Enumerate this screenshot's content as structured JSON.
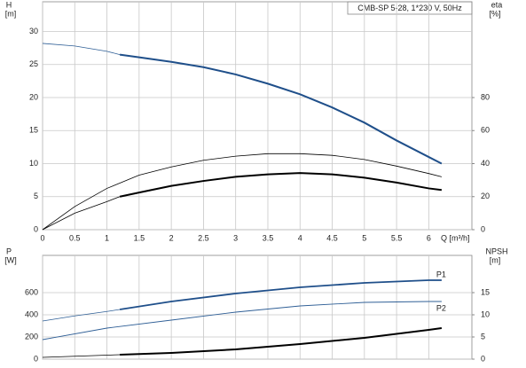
{
  "chart_data": [
    {
      "type": "line",
      "title": "CMB-SP 5-28, 1*230 V, 50Hz",
      "ylabel": "H",
      "yunit": "[m]",
      "y2label": "eta",
      "y2unit": "[%]",
      "xlabel": "Q [m³/h]",
      "xlim": [
        0,
        6.67
      ],
      "xticks": [
        0,
        0.5,
        1.0,
        1.5,
        2.0,
        2.5,
        3.0,
        3.5,
        4.0,
        4.5,
        5.0,
        5.5,
        6.0
      ],
      "ylim": [
        0,
        34.5
      ],
      "yticks": [
        0,
        5,
        10,
        15,
        20,
        25,
        30
      ],
      "y2lim": [
        0,
        138
      ],
      "y2ticks": [
        0,
        20,
        40,
        60,
        80
      ],
      "grid": true,
      "series": [
        {
          "color": "#2f5f96",
          "width": 0.8,
          "x": [
            0,
            0.5,
            1.0,
            1.2
          ],
          "values": [
            28.2,
            27.8,
            27.0,
            26.5
          ]
        },
        {
          "color": "#1f4f8a",
          "width": 2,
          "x": [
            1.2,
            1.5,
            2.0,
            2.5,
            3.0,
            3.5,
            4.0,
            4.5,
            5.0,
            5.5,
            6.0,
            6.2
          ],
          "values": [
            26.5,
            26.1,
            25.4,
            24.6,
            23.5,
            22.1,
            20.5,
            18.5,
            16.2,
            13.5,
            11.0,
            10.0
          ]
        },
        {
          "color": "#000000",
          "width": 0.8,
          "axis": "y2",
          "x": [
            0,
            0.5,
            1.0,
            1.5,
            2.0,
            2.5,
            3.0,
            3.5,
            4.0,
            4.5,
            5.0,
            5.5,
            6.0,
            6.2
          ],
          "values": [
            0,
            14,
            25,
            33,
            38,
            42,
            44.5,
            46,
            46,
            45,
            42.5,
            38.5,
            34,
            32
          ]
        },
        {
          "color": "#000000",
          "width": 0.8,
          "axis": "y2",
          "x": [
            0,
            0.5,
            1.0,
            1.2
          ],
          "values": [
            0,
            10,
            17,
            20
          ]
        },
        {
          "color": "#000000",
          "width": 2,
          "axis": "y2",
          "x": [
            1.2,
            1.5,
            2.0,
            2.5,
            3.0,
            3.5,
            4.0,
            4.5,
            5.0,
            5.5,
            6.0,
            6.2
          ],
          "values": [
            20,
            22.5,
            26.5,
            29.5,
            32,
            33.5,
            34.3,
            33.5,
            31.5,
            28.5,
            25,
            24
          ]
        }
      ]
    },
    {
      "type": "line",
      "ylabel": "P",
      "yunit": "[W]",
      "y2label": "NPSH",
      "y2unit": "[m]",
      "xlim": [
        0,
        6.67
      ],
      "xticks": [
        0,
        0.5,
        1.0,
        1.5,
        2.0,
        2.5,
        3.0,
        3.5,
        4.0,
        4.5,
        5.0,
        5.5,
        6.0
      ],
      "ylim": [
        0,
        936
      ],
      "yticks": [
        0,
        200,
        400,
        600
      ],
      "y2lim": [
        0,
        23.4
      ],
      "y2ticks": [
        0,
        5,
        10,
        15
      ],
      "grid": true,
      "series": [
        {
          "color": "#2f5f96",
          "width": 0.8,
          "x": [
            0,
            0.5,
            1.0,
            1.2
          ],
          "values": [
            344,
            390,
            430,
            448
          ]
        },
        {
          "name": "P1",
          "color": "#1f4f8a",
          "width": 1.8,
          "x": [
            1.2,
            2.0,
            3.0,
            4.0,
            5.0,
            6.0,
            6.2
          ],
          "values": [
            448,
            520,
            592,
            648,
            688,
            712,
            712
          ]
        },
        {
          "name": "P2",
          "color": "#2f5f96",
          "width": 0.9,
          "x": [
            0,
            1.0,
            2.0,
            3.0,
            4.0,
            5.0,
            6.0,
            6.2
          ],
          "values": [
            176,
            280,
            352,
            424,
            480,
            512,
            520,
            520
          ]
        },
        {
          "color": "#000000",
          "width": 0.8,
          "axis": "y2",
          "x": [
            0,
            0.6,
            1.2
          ],
          "values": [
            0.4,
            0.7,
            1.0
          ]
        },
        {
          "color": "#000000",
          "width": 2,
          "axis": "y2",
          "x": [
            1.2,
            2.0,
            3.0,
            4.0,
            5.0,
            6.0,
            6.2
          ],
          "values": [
            1.0,
            1.4,
            2.2,
            3.4,
            4.8,
            6.6,
            7.0
          ]
        }
      ]
    }
  ]
}
